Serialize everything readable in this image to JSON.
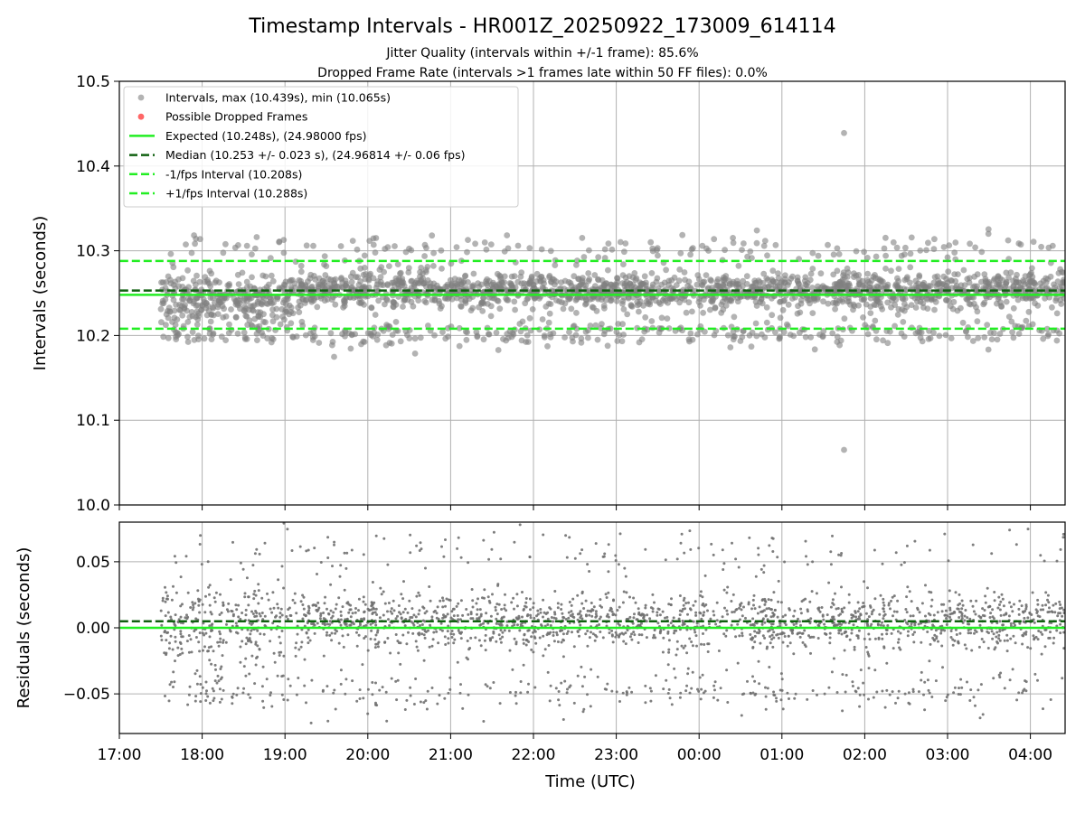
{
  "figure": {
    "title": "Timestamp Intervals - HR001Z_20250922_173009_614114",
    "subtitle_jitter": "Jitter Quality (intervals within +/-1 frame): 85.6%",
    "subtitle_dropped": "Dropped Frame Rate (intervals >1 frames late within 50 FF files): 0.0%",
    "xlabel": "Time (UTC)"
  },
  "colors": {
    "scatter_top": "#808080",
    "scatter_resid": "#707070",
    "dropped": "#ff6666",
    "expected": "#22ee22",
    "median": "#106010",
    "bounds": "#22ee22",
    "grid": "#b0b0b0"
  },
  "chart_data": [
    {
      "type": "scatter",
      "name": "intervals",
      "ylabel": "Intervals (seconds)",
      "ylim": [
        10.0,
        10.5
      ],
      "yticks": [
        "10.0",
        "10.1",
        "10.2",
        "10.3",
        "10.4",
        "10.5"
      ],
      "xlim": [
        "17:00",
        "04:25"
      ],
      "xticks": [
        "17:00",
        "18:00",
        "19:00",
        "20:00",
        "21:00",
        "22:00",
        "23:00",
        "00:00",
        "01:00",
        "02:00",
        "03:00",
        "04:00"
      ],
      "grid": true,
      "legend_position": "top-left",
      "legend": [
        "Intervals, max (10.439s), min (10.065s)",
        "Possible Dropped Frames",
        "Expected (10.248s), (24.98000 fps)",
        "Median (10.253 +/- 0.023 s), (24.96814 +/- 0.06 fps)",
        "-1/fps Interval (10.208s)",
        "+1/fps Interval (10.288s)"
      ],
      "reference_lines": {
        "expected": 10.248,
        "median": 10.253,
        "minus_one_fps": 10.208,
        "plus_one_fps": 10.288
      },
      "data_range": {
        "start": "17:30",
        "end": "04:25"
      },
      "clusters": [
        {
          "center": 10.253,
          "spread": 0.011,
          "share": 0.8
        },
        {
          "center": 10.203,
          "spread": 0.008,
          "share": 0.14
        },
        {
          "center": 10.302,
          "spread": 0.01,
          "share": 0.06
        }
      ],
      "outliers": [
        {
          "x": "01:45",
          "y": 10.439
        },
        {
          "x": "01:45",
          "y": 10.065
        }
      ]
    },
    {
      "type": "scatter",
      "name": "residuals",
      "ylabel": "Residuals (seconds)",
      "ylim": [
        -0.08,
        0.08
      ],
      "yticks": [
        "−0.05",
        "0.00",
        "0.05"
      ],
      "ytick_values": [
        -0.05,
        0.0,
        0.05
      ],
      "xlim": [
        "17:00",
        "04:25"
      ],
      "xticks": [
        "17:00",
        "18:00",
        "19:00",
        "20:00",
        "21:00",
        "22:00",
        "23:00",
        "00:00",
        "01:00",
        "02:00",
        "03:00",
        "04:00"
      ],
      "grid": true,
      "reference_lines": {
        "expected": 0.0,
        "median": 0.005
      },
      "data_range": {
        "start": "17:30",
        "end": "04:25"
      },
      "clusters": [
        {
          "center": 0.005,
          "spread": 0.011,
          "share": 0.8
        },
        {
          "center": -0.048,
          "spread": 0.008,
          "share": 0.14
        },
        {
          "center": 0.058,
          "spread": 0.009,
          "share": 0.06
        }
      ],
      "range": {
        "max": 0.075,
        "min": -0.072
      }
    }
  ]
}
